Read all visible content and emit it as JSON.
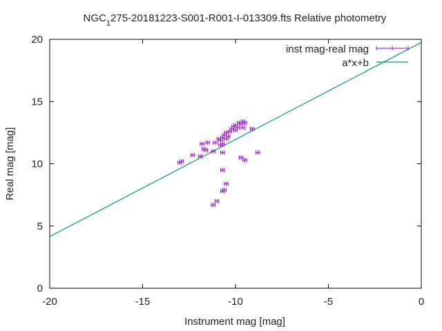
{
  "chart_data": {
    "type": "scatter",
    "title": {
      "pre": "NGC",
      "sub": "1",
      "post": "275-20181223-S001-R001-I-013309.fts Relative photometry"
    },
    "xlabel": "Instrument mag [mag]",
    "ylabel": "Real mag [mag]",
    "xlim": [
      -20,
      0
    ],
    "ylim": [
      0,
      20
    ],
    "xticks": [
      -20,
      -15,
      -10,
      -5,
      0
    ],
    "yticks": [
      0,
      5,
      10,
      15,
      20
    ],
    "grid": false,
    "legend_position": "top-right",
    "colors": {
      "points": "#9400d3",
      "fit": "#009e73",
      "axes": "#000000"
    },
    "series": [
      {
        "name": "inst mag-real mag",
        "type": "errorbar",
        "x_error": 0.1,
        "points": [
          [
            -13.0,
            10.1
          ],
          [
            -12.9,
            10.2
          ],
          [
            -12.3,
            10.7
          ],
          [
            -11.9,
            10.6
          ],
          [
            -11.8,
            11.6
          ],
          [
            -11.7,
            11.2
          ],
          [
            -11.6,
            11.1
          ],
          [
            -11.5,
            11.7
          ],
          [
            -11.2,
            11.0
          ],
          [
            -11.1,
            11.7
          ],
          [
            -10.9,
            12.0
          ],
          [
            -10.8,
            11.9
          ],
          [
            -10.8,
            11.5
          ],
          [
            -10.7,
            11.6
          ],
          [
            -10.7,
            12.1
          ],
          [
            -10.6,
            12.3
          ],
          [
            -10.5,
            12.5
          ],
          [
            -10.5,
            12.0
          ],
          [
            -10.4,
            12.2
          ],
          [
            -10.3,
            12.6
          ],
          [
            -10.2,
            12.8
          ],
          [
            -10.1,
            13.0
          ],
          [
            -10.0,
            12.7
          ],
          [
            -10.0,
            13.1
          ],
          [
            -9.9,
            12.9
          ],
          [
            -9.8,
            13.3
          ],
          [
            -9.7,
            13.2
          ],
          [
            -9.6,
            13.4
          ],
          [
            -9.5,
            13.3
          ],
          [
            -9.6,
            12.9
          ],
          [
            -9.1,
            12.8
          ],
          [
            -10.7,
            10.9
          ],
          [
            -9.7,
            10.5
          ],
          [
            -9.5,
            10.3
          ],
          [
            -8.8,
            10.9
          ],
          [
            -10.7,
            9.5
          ],
          [
            -10.5,
            8.4
          ],
          [
            -10.6,
            7.9
          ],
          [
            -10.7,
            7.8
          ],
          [
            -11.0,
            7.0
          ],
          [
            -11.2,
            6.7
          ]
        ]
      },
      {
        "name": "a*x+b",
        "type": "line",
        "x": [
          -20,
          0
        ],
        "y": [
          4.15,
          19.75
        ]
      }
    ]
  }
}
